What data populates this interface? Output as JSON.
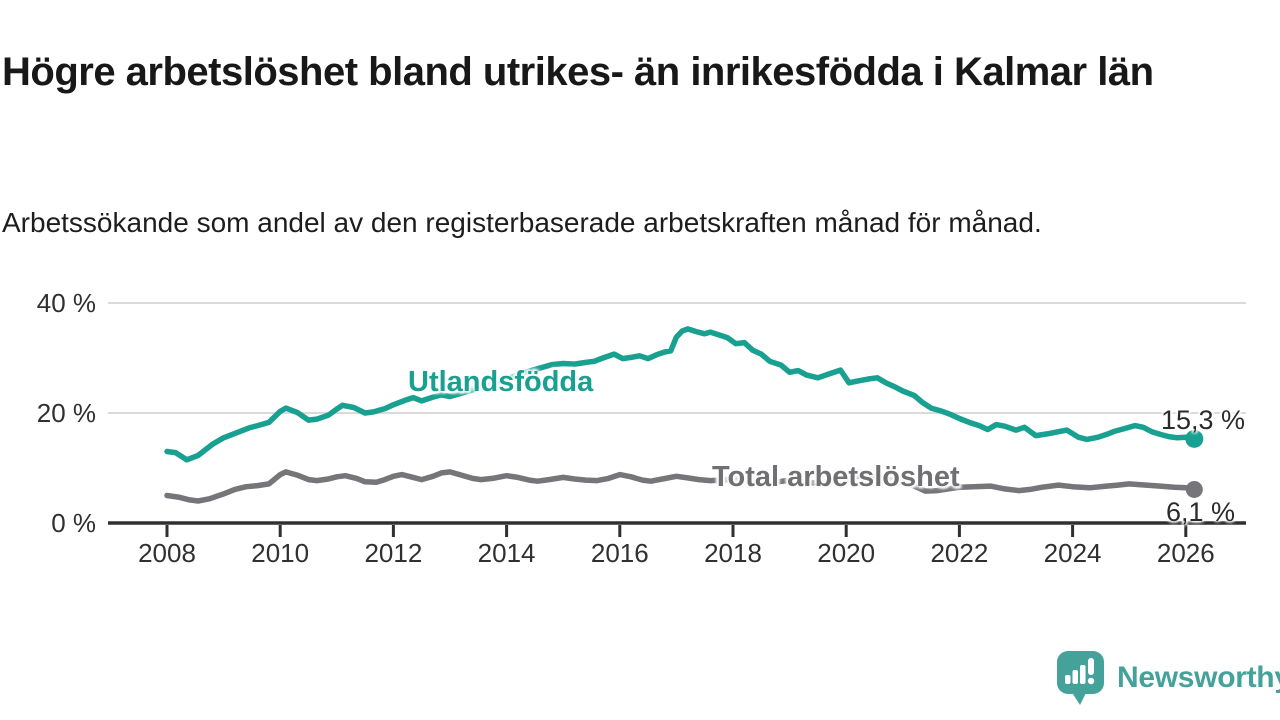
{
  "header": {
    "title": "Högre arbetslöshet bland utrikes- än inrikesfödda i Kalmar län",
    "subtitle": "Arbetssökande som andel av den registerbaserade arbetskraften månad för månad."
  },
  "chart_data": {
    "type": "line",
    "unit": "%",
    "grid": "horizontal-only",
    "x_range_years": [
      2008,
      2026.2
    ],
    "ylim": [
      0,
      44
    ],
    "x_ticks": [
      2008,
      2010,
      2012,
      2014,
      2016,
      2018,
      2020,
      2022,
      2024,
      2026
    ],
    "x_tick_labels": [
      "2008",
      "2010",
      "2012",
      "2014",
      "2016",
      "2018",
      "2020",
      "2022",
      "2024",
      "2026"
    ],
    "y_ticks": [
      40,
      20,
      0
    ],
    "y_tick_labels": [
      "40 %",
      "20 %",
      "0 %"
    ],
    "colors": {
      "grid": "#dadada",
      "axis": "#303030",
      "tick_text": "#303030"
    },
    "series": [
      {
        "name": "Utlandsfödda",
        "color": "#18A091",
        "end_label": "15,3 %",
        "end_value": 15.3,
        "points": [
          [
            2008.0,
            13.0
          ],
          [
            2008.15,
            12.8
          ],
          [
            2008.35,
            11.5
          ],
          [
            2008.55,
            12.3
          ],
          [
            2008.8,
            14.3
          ],
          [
            2009.0,
            15.5
          ],
          [
            2009.2,
            16.3
          ],
          [
            2009.45,
            17.3
          ],
          [
            2009.6,
            17.7
          ],
          [
            2009.8,
            18.3
          ],
          [
            2010.0,
            20.3
          ],
          [
            2010.1,
            20.9
          ],
          [
            2010.3,
            20.1
          ],
          [
            2010.5,
            18.7
          ],
          [
            2010.65,
            18.9
          ],
          [
            2010.85,
            19.6
          ],
          [
            2011.0,
            20.7
          ],
          [
            2011.1,
            21.4
          ],
          [
            2011.3,
            21.0
          ],
          [
            2011.5,
            20.0
          ],
          [
            2011.65,
            20.2
          ],
          [
            2011.85,
            20.8
          ],
          [
            2012.0,
            21.5
          ],
          [
            2012.2,
            22.3
          ],
          [
            2012.35,
            22.8
          ],
          [
            2012.5,
            22.2
          ],
          [
            2012.7,
            22.9
          ],
          [
            2012.85,
            23.3
          ],
          [
            2013.0,
            23.0
          ],
          [
            2013.2,
            23.6
          ],
          [
            2013.4,
            24.2
          ],
          [
            2013.6,
            24.8
          ],
          [
            2013.8,
            25.5
          ],
          [
            2014.0,
            26.2
          ],
          [
            2014.2,
            26.9
          ],
          [
            2014.4,
            27.6
          ],
          [
            2014.6,
            28.2
          ],
          [
            2014.8,
            28.8
          ],
          [
            2015.0,
            29.0
          ],
          [
            2015.2,
            28.9
          ],
          [
            2015.4,
            29.2
          ],
          [
            2015.55,
            29.4
          ],
          [
            2015.7,
            30.0
          ],
          [
            2015.9,
            30.7
          ],
          [
            2016.05,
            29.9
          ],
          [
            2016.2,
            30.1
          ],
          [
            2016.35,
            30.4
          ],
          [
            2016.5,
            29.9
          ],
          [
            2016.65,
            30.6
          ],
          [
            2016.8,
            31.1
          ],
          [
            2016.9,
            31.3
          ],
          [
            2017.0,
            33.8
          ],
          [
            2017.1,
            34.9
          ],
          [
            2017.2,
            35.3
          ],
          [
            2017.35,
            34.8
          ],
          [
            2017.5,
            34.4
          ],
          [
            2017.6,
            34.7
          ],
          [
            2017.75,
            34.2
          ],
          [
            2017.9,
            33.7
          ],
          [
            2018.05,
            32.6
          ],
          [
            2018.2,
            32.8
          ],
          [
            2018.35,
            31.4
          ],
          [
            2018.5,
            30.7
          ],
          [
            2018.65,
            29.4
          ],
          [
            2018.85,
            28.7
          ],
          [
            2019.0,
            27.4
          ],
          [
            2019.15,
            27.7
          ],
          [
            2019.3,
            26.9
          ],
          [
            2019.5,
            26.4
          ],
          [
            2019.7,
            27.1
          ],
          [
            2019.9,
            27.8
          ],
          [
            2020.05,
            25.5
          ],
          [
            2020.2,
            25.8
          ],
          [
            2020.4,
            26.2
          ],
          [
            2020.55,
            26.4
          ],
          [
            2020.7,
            25.5
          ],
          [
            2020.85,
            24.8
          ],
          [
            2021.0,
            24.0
          ],
          [
            2021.2,
            23.2
          ],
          [
            2021.35,
            21.9
          ],
          [
            2021.5,
            20.9
          ],
          [
            2021.7,
            20.3
          ],
          [
            2021.85,
            19.7
          ],
          [
            2022.0,
            19.0
          ],
          [
            2022.2,
            18.2
          ],
          [
            2022.35,
            17.7
          ],
          [
            2022.5,
            17.0
          ],
          [
            2022.65,
            17.9
          ],
          [
            2022.8,
            17.6
          ],
          [
            2023.0,
            16.9
          ],
          [
            2023.15,
            17.4
          ],
          [
            2023.35,
            15.9
          ],
          [
            2023.55,
            16.2
          ],
          [
            2023.75,
            16.6
          ],
          [
            2023.9,
            16.9
          ],
          [
            2024.1,
            15.6
          ],
          [
            2024.25,
            15.2
          ],
          [
            2024.45,
            15.6
          ],
          [
            2024.6,
            16.1
          ],
          [
            2024.75,
            16.7
          ],
          [
            2024.9,
            17.1
          ],
          [
            2025.1,
            17.7
          ],
          [
            2025.25,
            17.4
          ],
          [
            2025.4,
            16.6
          ],
          [
            2025.55,
            16.1
          ],
          [
            2025.7,
            15.7
          ],
          [
            2025.85,
            15.5
          ],
          [
            2026.0,
            15.6
          ],
          [
            2026.15,
            15.3
          ]
        ]
      },
      {
        "name": "Total arbetslöshet",
        "color": "#76767A",
        "label_color": "#6F6F74",
        "end_label": "6,1 %",
        "end_value": 6.1,
        "points": [
          [
            2008.0,
            5.0
          ],
          [
            2008.2,
            4.7
          ],
          [
            2008.4,
            4.2
          ],
          [
            2008.55,
            4.0
          ],
          [
            2008.75,
            4.4
          ],
          [
            2009.0,
            5.3
          ],
          [
            2009.2,
            6.1
          ],
          [
            2009.4,
            6.6
          ],
          [
            2009.6,
            6.8
          ],
          [
            2009.8,
            7.1
          ],
          [
            2010.0,
            8.8
          ],
          [
            2010.1,
            9.3
          ],
          [
            2010.3,
            8.7
          ],
          [
            2010.5,
            7.9
          ],
          [
            2010.65,
            7.7
          ],
          [
            2010.85,
            8.0
          ],
          [
            2011.0,
            8.4
          ],
          [
            2011.15,
            8.6
          ],
          [
            2011.35,
            8.1
          ],
          [
            2011.5,
            7.5
          ],
          [
            2011.7,
            7.4
          ],
          [
            2011.85,
            7.9
          ],
          [
            2012.0,
            8.5
          ],
          [
            2012.15,
            8.8
          ],
          [
            2012.35,
            8.3
          ],
          [
            2012.5,
            7.9
          ],
          [
            2012.7,
            8.5
          ],
          [
            2012.85,
            9.1
          ],
          [
            2013.0,
            9.3
          ],
          [
            2013.2,
            8.7
          ],
          [
            2013.4,
            8.1
          ],
          [
            2013.55,
            7.9
          ],
          [
            2013.75,
            8.1
          ],
          [
            2014.0,
            8.6
          ],
          [
            2014.2,
            8.3
          ],
          [
            2014.4,
            7.8
          ],
          [
            2014.55,
            7.6
          ],
          [
            2014.75,
            7.9
          ],
          [
            2015.0,
            8.3
          ],
          [
            2015.2,
            8.0
          ],
          [
            2015.4,
            7.8
          ],
          [
            2015.6,
            7.7
          ],
          [
            2015.8,
            8.1
          ],
          [
            2016.0,
            8.8
          ],
          [
            2016.2,
            8.4
          ],
          [
            2016.4,
            7.8
          ],
          [
            2016.55,
            7.6
          ],
          [
            2016.75,
            8.0
          ],
          [
            2017.0,
            8.5
          ],
          [
            2017.2,
            8.2
          ],
          [
            2017.4,
            7.9
          ],
          [
            2017.6,
            7.7
          ],
          [
            2017.8,
            7.8
          ],
          [
            2018.0,
            8.0
          ],
          [
            2018.2,
            7.7
          ],
          [
            2018.4,
            7.4
          ],
          [
            2018.6,
            7.3
          ],
          [
            2018.8,
            7.5
          ],
          [
            2019.0,
            7.8
          ],
          [
            2019.2,
            7.5
          ],
          [
            2019.4,
            7.3
          ],
          [
            2019.6,
            7.4
          ],
          [
            2019.8,
            7.6
          ],
          [
            2020.0,
            7.9
          ],
          [
            2020.2,
            8.5
          ],
          [
            2020.35,
            8.7
          ],
          [
            2020.5,
            8.4
          ],
          [
            2020.7,
            8.0
          ],
          [
            2020.9,
            7.6
          ],
          [
            2021.1,
            7.1
          ],
          [
            2021.25,
            6.5
          ],
          [
            2021.4,
            5.8
          ],
          [
            2021.6,
            5.9
          ],
          [
            2021.8,
            6.2
          ],
          [
            2022.0,
            6.5
          ],
          [
            2022.25,
            6.6
          ],
          [
            2022.55,
            6.7
          ],
          [
            2022.8,
            6.2
          ],
          [
            2023.05,
            5.9
          ],
          [
            2023.25,
            6.1
          ],
          [
            2023.45,
            6.5
          ],
          [
            2023.75,
            6.9
          ],
          [
            2024.0,
            6.6
          ],
          [
            2024.3,
            6.4
          ],
          [
            2024.6,
            6.7
          ],
          [
            2024.8,
            6.9
          ],
          [
            2025.0,
            7.1
          ],
          [
            2025.3,
            6.9
          ],
          [
            2025.55,
            6.7
          ],
          [
            2025.8,
            6.5
          ],
          [
            2026.0,
            6.4
          ],
          [
            2026.15,
            6.1
          ]
        ]
      }
    ]
  },
  "branding": {
    "name": "Newsworthy",
    "color": "#45A29B",
    "icon": "newsworthy-bubble-chart-icon"
  }
}
